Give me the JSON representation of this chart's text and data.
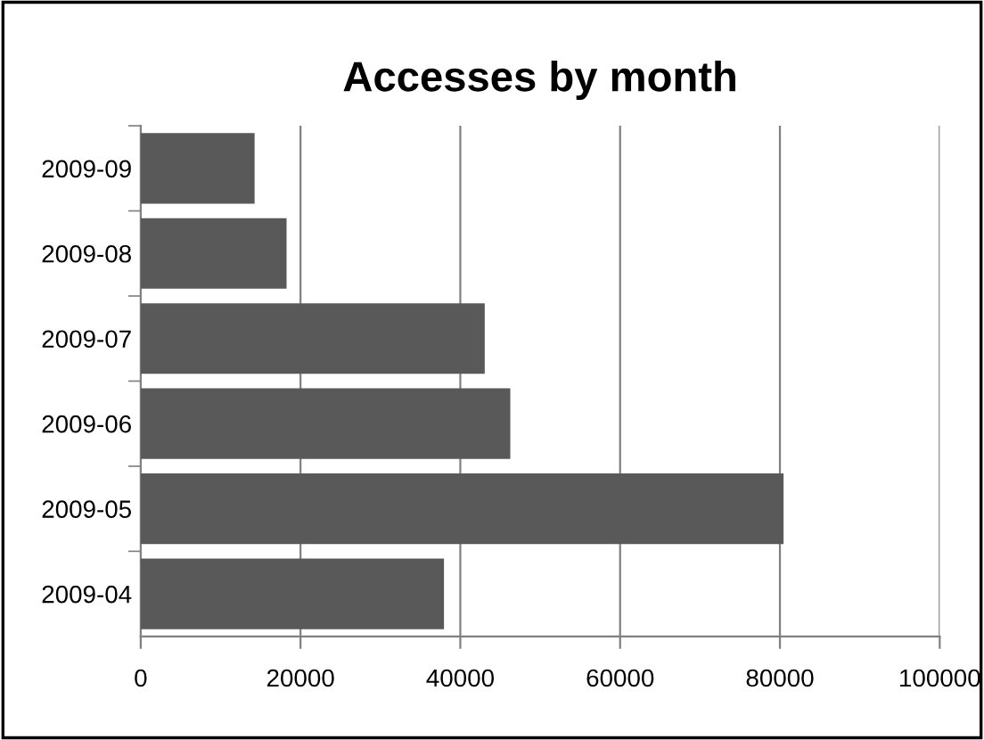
{
  "chart_data": {
    "type": "bar",
    "orientation": "horizontal",
    "title": "Accesses by month",
    "categories": [
      "2009-09",
      "2009-08",
      "2009-07",
      "2009-06",
      "2009-05",
      "2009-04"
    ],
    "values": [
      14100,
      18100,
      42900,
      46100,
      80300,
      37800
    ],
    "color": "#595959",
    "xlim": [
      0,
      100000
    ],
    "xticks": [
      0,
      20000,
      40000,
      60000,
      80000,
      100000
    ],
    "grid": "x"
  }
}
